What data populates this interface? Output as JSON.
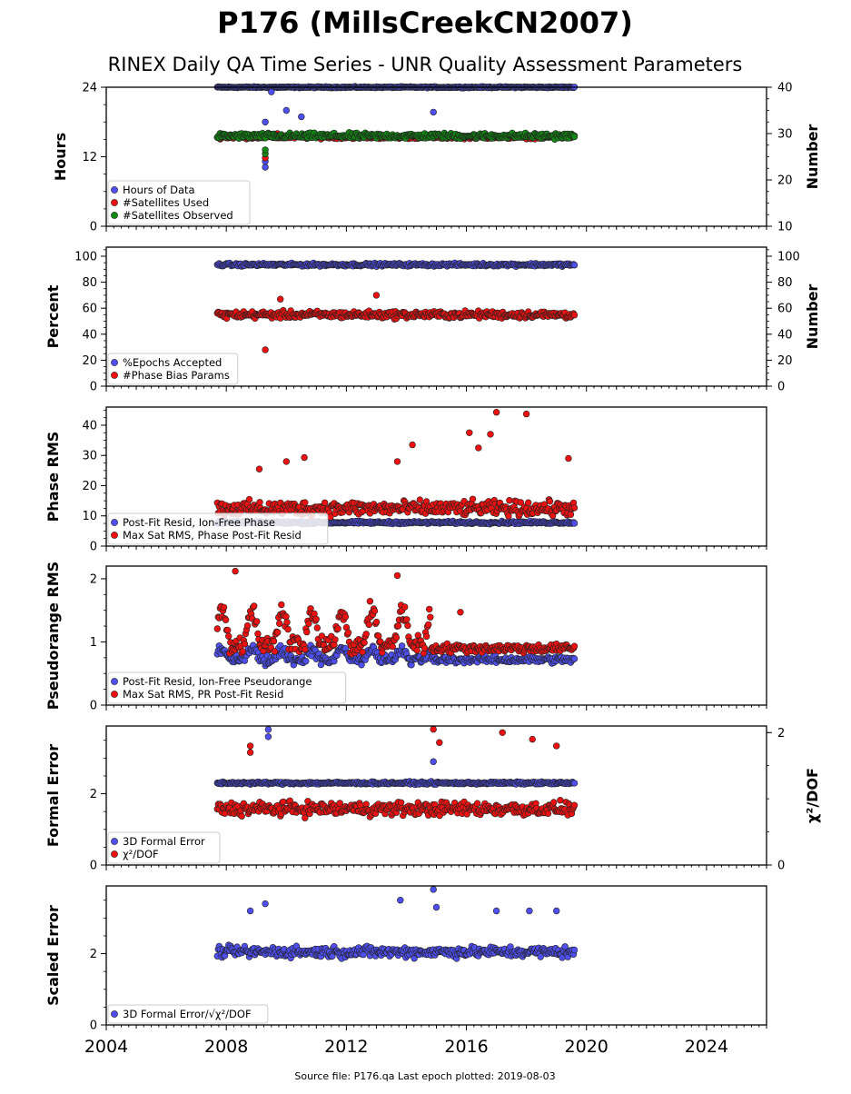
{
  "title": "P176 (MillsCreekCN2007)",
  "subtitle": "RINEX Daily QA Time Series - UNR Quality Assessment Parameters",
  "footer": "Source file: P176.qa Last epoch plotted: 2019-08-03",
  "colors": {
    "blue": "#4f4ff0",
    "red": "#ee1111",
    "green": "#118811",
    "edge": "#222222"
  },
  "chart_data": [
    {
      "type": "scatter",
      "xlim": [
        2004,
        2026
      ],
      "xticks": [
        "2004",
        "2008",
        "2012",
        "2016",
        "2020",
        "2024"
      ],
      "ylabel": "Hours",
      "ylim": [
        0,
        24
      ],
      "yticks": [
        "0",
        "12",
        "24"
      ],
      "ylabel_right": "Number",
      "ylim_right": [
        10,
        40
      ],
      "yticks_right": [
        "10",
        "20",
        "30",
        "40"
      ],
      "legend": "lower-left",
      "series": [
        {
          "name": "Hours of Data",
          "color": "blue",
          "axis": "left",
          "x_range": [
            2007.7,
            2019.6
          ],
          "base": 24,
          "noise": 0.15,
          "outliers": [
            [
              2009.3,
              10.2
            ],
            [
              2009.3,
              11.2
            ],
            [
              2009.3,
              18.0
            ],
            [
              2009.5,
              23.2
            ],
            [
              2010.0,
              20.0
            ],
            [
              2010.5,
              18.9
            ],
            [
              2014.9,
              19.7
            ]
          ]
        },
        {
          "name": "#Satellites Used",
          "color": "red",
          "axis": "left",
          "x_range": [
            2007.7,
            2019.6
          ],
          "base": 15.4,
          "noise": 0.4,
          "outliers": [
            [
              2009.3,
              11.8
            ],
            [
              2009.7,
              16.0
            ]
          ]
        },
        {
          "name": "#Satellites Observed",
          "color": "green",
          "axis": "left",
          "x_range": [
            2007.7,
            2019.6
          ],
          "base": 15.6,
          "noise": 0.7,
          "outliers": [
            [
              2009.3,
              12.5
            ],
            [
              2009.3,
              13.2
            ]
          ]
        }
      ]
    },
    {
      "type": "scatter",
      "xlim": [
        2004,
        2026
      ],
      "ylabel": "Percent",
      "ylim": [
        0,
        107
      ],
      "yticks": [
        "0",
        "20",
        "40",
        "60",
        "80",
        "100"
      ],
      "ylabel_right": "Number",
      "ylim_right": [
        0,
        107
      ],
      "yticks_right": [
        "0",
        "20",
        "40",
        "60",
        "80",
        "100"
      ],
      "legend": "lower-left",
      "series": [
        {
          "name": "%Epochs Accepted",
          "color": "blue",
          "axis": "left",
          "x_range": [
            2007.7,
            2019.6
          ],
          "base": 93.5,
          "noise": 1.6,
          "outliers": []
        },
        {
          "name": "#Phase Bias Params",
          "color": "red",
          "axis": "right",
          "x_range": [
            2007.7,
            2019.6
          ],
          "base": 55,
          "noise": 4,
          "outliers": [
            [
              2009.3,
              28
            ],
            [
              2009.8,
              67
            ],
            [
              2013.0,
              70
            ]
          ]
        }
      ]
    },
    {
      "type": "scatter",
      "xlim": [
        2004,
        2026
      ],
      "ylabel": "Phase RMS",
      "ylim": [
        0,
        46
      ],
      "yticks": [
        "0",
        "10",
        "20",
        "30",
        "40"
      ],
      "legend": "lower-left",
      "series": [
        {
          "name": "Post-Fit Resid, Ion-Free Phase",
          "color": "blue",
          "axis": "left",
          "x_range": [
            2007.7,
            2019.6
          ],
          "base": 7.8,
          "noise": 0.6,
          "outliers": []
        },
        {
          "name": "Max Sat RMS, Phase Post-Fit Resid",
          "color": "red",
          "axis": "left",
          "x_range": [
            2007.7,
            2019.6
          ],
          "base": 12.5,
          "noise": 3.5,
          "outliers": [
            [
              2009.1,
              25.5
            ],
            [
              2010.0,
              28.0
            ],
            [
              2010.6,
              29.3
            ],
            [
              2013.7,
              28.0
            ],
            [
              2014.2,
              33.5
            ],
            [
              2016.1,
              37.5
            ],
            [
              2016.4,
              32.5
            ],
            [
              2016.8,
              37.0
            ],
            [
              2017.0,
              44.3
            ],
            [
              2018.0,
              43.7
            ],
            [
              2019.4,
              29.0
            ]
          ]
        }
      ]
    },
    {
      "type": "scatter",
      "xlim": [
        2004,
        2026
      ],
      "ylabel": "Pseudorange RMS",
      "ylim": [
        0,
        2.2
      ],
      "yticks": [
        "0",
        "1",
        "2"
      ],
      "legend": "lower-left",
      "series": [
        {
          "name": "Post-Fit Resid, Ion-Free Pseudorange",
          "color": "blue",
          "axis": "left",
          "x_range": [
            2007.7,
            2019.6
          ],
          "base": 0.72,
          "noise": 0.08,
          "outliers": []
        },
        {
          "name": "Max Sat RMS, PR Post-Fit Resid",
          "color": "red",
          "axis": "left",
          "x_range": [
            2007.7,
            2019.6
          ],
          "base": 0.9,
          "noise": 0.1,
          "outliers": [
            [
              2008.3,
              2.12
            ],
            [
              2013.7,
              2.05
            ],
            [
              2015.8,
              1.47
            ]
          ]
        }
      ]
    },
    {
      "type": "scatter",
      "xlim": [
        2004,
        2026
      ],
      "ylabel": "Formal Error",
      "ylim": [
        0,
        3.9
      ],
      "yticks": [
        "0",
        "2"
      ],
      "ylabel_right": "χ²/DOF",
      "ylim_right": [
        0,
        2.1
      ],
      "yticks_right": [
        "0",
        "2"
      ],
      "legend": "lower-left",
      "series": [
        {
          "name": "3D Formal Error",
          "color": "blue",
          "axis": "left",
          "x_range": [
            2007.7,
            2019.6
          ],
          "base": 2.3,
          "noise": 0.05,
          "outliers": [
            [
              2009.4,
              3.8
            ],
            [
              2009.4,
              3.6
            ],
            [
              2014.9,
              2.9
            ]
          ]
        },
        {
          "name": "χ²/DOF",
          "color": "red",
          "axis": "right",
          "x_range": [
            2007.7,
            2019.6
          ],
          "base": 0.85,
          "noise": 0.15,
          "outliers": [
            [
              2008.8,
              1.8
            ],
            [
              2008.8,
              1.7
            ],
            [
              2014.9,
              2.05
            ],
            [
              2015.1,
              1.85
            ],
            [
              2017.2,
              2.0
            ],
            [
              2018.2,
              1.9
            ],
            [
              2019.0,
              1.8
            ]
          ]
        }
      ]
    },
    {
      "type": "scatter",
      "xlim": [
        2004,
        2026
      ],
      "ylabel": "Scaled Error",
      "ylim": [
        0,
        3.9
      ],
      "yticks": [
        "0",
        "2"
      ],
      "legend": "lower-left",
      "series": [
        {
          "name": "3D Formal Error/√χ²/DOF",
          "color": "blue",
          "axis": "left",
          "x_range": [
            2007.7,
            2019.6
          ],
          "base": 2.05,
          "noise": 0.22,
          "outliers": [
            [
              2008.8,
              3.2
            ],
            [
              2009.3,
              3.4
            ],
            [
              2013.8,
              3.5
            ],
            [
              2014.9,
              3.8
            ],
            [
              2015.0,
              3.3
            ],
            [
              2017.0,
              3.2
            ],
            [
              2018.1,
              3.2
            ],
            [
              2019.0,
              3.2
            ]
          ]
        }
      ]
    }
  ]
}
